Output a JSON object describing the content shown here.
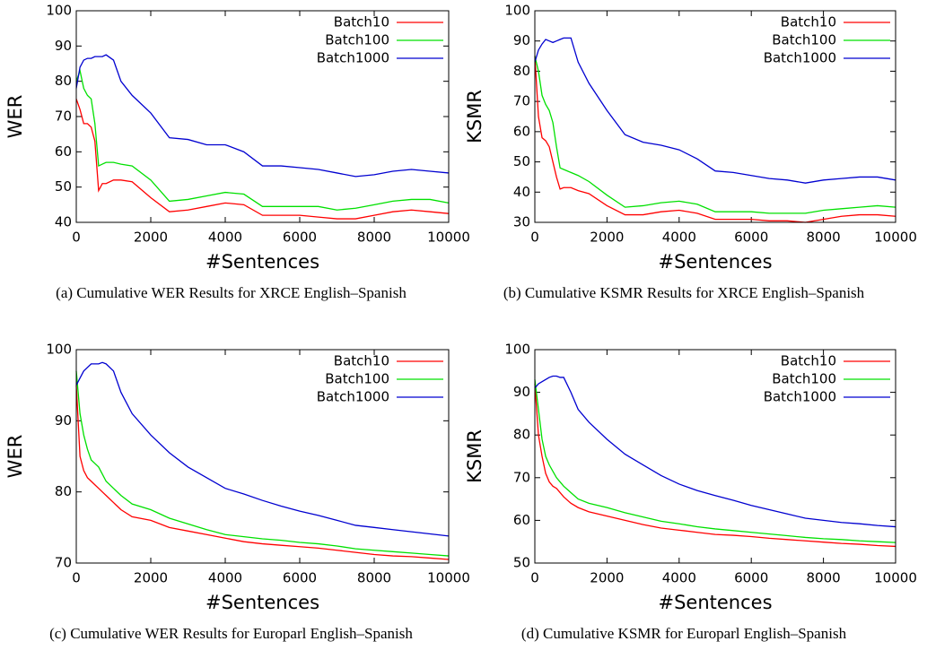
{
  "chart_data": [
    {
      "type": "line",
      "caption": "(a) Cumulative WER Results for XRCE English–Spanish",
      "x_label": "#Sentences",
      "y_label": "WER",
      "x": [
        0,
        100,
        200,
        300,
        400,
        500,
        600,
        700,
        800,
        1000,
        1200,
        1500,
        2000,
        2500,
        3000,
        3500,
        4000,
        4500,
        5000,
        5500,
        6000,
        6500,
        7000,
        7500,
        8000,
        8500,
        9000,
        9500,
        10000
      ],
      "xlim": [
        0,
        10000
      ],
      "xticks": [
        0,
        2000,
        4000,
        6000,
        8000,
        10000
      ],
      "ylim": [
        40,
        100
      ],
      "yticks": [
        40,
        50,
        60,
        70,
        80,
        90,
        100
      ],
      "legend": "top-right",
      "series": [
        {
          "name": "Batch10",
          "color": "#ff0000",
          "values": [
            75,
            72,
            68,
            68,
            67,
            63,
            49,
            51,
            51,
            52,
            52,
            51.5,
            47,
            43,
            43.5,
            44.5,
            45.5,
            45,
            42,
            42,
            42,
            41.5,
            41,
            41,
            42,
            43,
            43.5,
            43,
            42.5
          ]
        },
        {
          "name": "Batch100",
          "color": "#00e000",
          "values": [
            80,
            83,
            78,
            76,
            75,
            68,
            56,
            56.5,
            57,
            57,
            56.5,
            56,
            52,
            46,
            46.5,
            47.5,
            48.5,
            48,
            44.5,
            44.5,
            44.5,
            44.5,
            43.5,
            44,
            45,
            46,
            46.5,
            46.5,
            45.5
          ]
        },
        {
          "name": "Batch1000",
          "color": "#0000d0",
          "values": [
            78,
            84,
            86,
            86.5,
            86.5,
            87,
            87,
            87,
            87.5,
            86,
            80,
            76,
            71,
            64,
            63.5,
            62,
            62,
            60,
            56,
            56,
            55.5,
            55,
            54,
            53,
            53.5,
            54.5,
            55,
            54.5,
            54
          ]
        }
      ]
    },
    {
      "type": "line",
      "caption": "(b) Cumulative KSMR Results for XRCE English–Spanish",
      "x_label": "#Sentences",
      "y_label": "KSMR",
      "x": [
        0,
        100,
        200,
        300,
        400,
        500,
        600,
        700,
        800,
        1000,
        1200,
        1500,
        2000,
        2500,
        3000,
        3500,
        4000,
        4500,
        5000,
        5500,
        6000,
        6500,
        7000,
        7500,
        8000,
        8500,
        9000,
        9500,
        10000
      ],
      "xlim": [
        0,
        10000
      ],
      "xticks": [
        0,
        2000,
        4000,
        6000,
        8000,
        10000
      ],
      "ylim": [
        30,
        100
      ],
      "yticks": [
        30,
        40,
        50,
        60,
        70,
        80,
        90,
        100
      ],
      "legend": "top-right",
      "series": [
        {
          "name": "Batch10",
          "color": "#ff0000",
          "values": [
            85,
            65,
            58,
            57,
            55,
            50,
            45,
            41,
            41.5,
            41.5,
            40.5,
            39.5,
            35.5,
            32.5,
            32.5,
            33.5,
            34,
            33,
            31,
            31,
            31,
            30.5,
            30.5,
            30,
            31,
            32,
            32.5,
            32.5,
            32
          ]
        },
        {
          "name": "Batch100",
          "color": "#00e000",
          "values": [
            85,
            80,
            72,
            69,
            67,
            63,
            55,
            48,
            47.5,
            46.5,
            45.5,
            43.5,
            39,
            35,
            35.5,
            36.5,
            37,
            36,
            33.5,
            33.5,
            33.5,
            33,
            33,
            33,
            34,
            34.5,
            35,
            35.5,
            35
          ]
        },
        {
          "name": "Batch1000",
          "color": "#0000d0",
          "values": [
            83,
            87,
            89,
            90.5,
            90,
            89.5,
            90,
            90.5,
            91,
            91,
            83,
            76,
            67,
            59,
            56.5,
            55.5,
            54,
            51,
            47,
            46.5,
            45.5,
            44.5,
            44,
            43,
            44,
            44.5,
            45,
            45,
            44
          ]
        }
      ]
    },
    {
      "type": "line",
      "caption": "(c) Cumulative WER Results for Europarl English–Spanish",
      "x_label": "#Sentences",
      "y_label": "WER",
      "x": [
        0,
        100,
        200,
        300,
        400,
        500,
        600,
        700,
        800,
        1000,
        1200,
        1500,
        2000,
        2500,
        3000,
        3500,
        4000,
        4500,
        5000,
        5500,
        6000,
        6500,
        7000,
        7500,
        8000,
        8500,
        9000,
        9500,
        10000
      ],
      "xlim": [
        0,
        10000
      ],
      "xticks": [
        0,
        2000,
        4000,
        6000,
        8000,
        10000
      ],
      "ylim": [
        70,
        100
      ],
      "yticks": [
        70,
        80,
        90,
        100
      ],
      "legend": "top-right",
      "series": [
        {
          "name": "Batch10",
          "color": "#ff0000",
          "values": [
            95,
            85,
            83,
            82,
            81.5,
            81,
            80.5,
            80,
            79.5,
            78.5,
            77.5,
            76.5,
            76,
            75,
            74.5,
            74,
            73.5,
            73,
            72.7,
            72.5,
            72.3,
            72.1,
            71.8,
            71.5,
            71.2,
            71,
            70.9,
            70.7,
            70.5
          ]
        },
        {
          "name": "Batch100",
          "color": "#00e000",
          "values": [
            97,
            91,
            88,
            86,
            84.5,
            84,
            83.5,
            82.5,
            81.5,
            80.5,
            79.5,
            78.3,
            77.5,
            76.3,
            75.5,
            74.7,
            74,
            73.7,
            73.4,
            73.2,
            72.9,
            72.7,
            72.4,
            72,
            71.8,
            71.6,
            71.4,
            71.2,
            71
          ]
        },
        {
          "name": "Batch1000",
          "color": "#0000d0",
          "values": [
            95,
            96,
            97,
            97.5,
            98,
            98,
            98,
            98.2,
            98,
            97,
            94,
            91,
            88,
            85.5,
            83.5,
            82,
            80.5,
            79.7,
            78.8,
            78,
            77.3,
            76.7,
            76,
            75.3,
            75,
            74.7,
            74.4,
            74.1,
            73.8
          ]
        }
      ]
    },
    {
      "type": "line",
      "caption": "(d) Cumulative KSMR for Europarl English–Spanish",
      "x_label": "#Sentences",
      "y_label": "KSMR",
      "x": [
        0,
        100,
        200,
        300,
        400,
        500,
        600,
        700,
        800,
        1000,
        1200,
        1500,
        2000,
        2500,
        3000,
        3500,
        4000,
        4500,
        5000,
        5500,
        6000,
        6500,
        7000,
        7500,
        8000,
        8500,
        9000,
        9500,
        10000
      ],
      "xlim": [
        0,
        10000
      ],
      "xticks": [
        0,
        2000,
        4000,
        6000,
        8000,
        10000
      ],
      "ylim": [
        50,
        100
      ],
      "yticks": [
        50,
        60,
        70,
        80,
        90,
        100
      ],
      "legend": "top-right",
      "series": [
        {
          "name": "Batch10",
          "color": "#ff0000",
          "values": [
            92,
            80,
            75,
            71,
            69,
            68,
            67.5,
            66.5,
            65.5,
            64,
            63,
            62,
            61,
            60,
            59,
            58.2,
            57.7,
            57.2,
            56.7,
            56.5,
            56.2,
            55.8,
            55.5,
            55.2,
            54.9,
            54.6,
            54.4,
            54.1,
            53.9
          ]
        },
        {
          "name": "Batch100",
          "color": "#00e000",
          "values": [
            93,
            86,
            79,
            75,
            73,
            71.5,
            70,
            69,
            68,
            66.5,
            65,
            64,
            63,
            61.8,
            60.8,
            59.8,
            59.2,
            58.5,
            58,
            57.6,
            57.2,
            56.8,
            56.4,
            56,
            55.7,
            55.5,
            55.2,
            55,
            54.8
          ]
        },
        {
          "name": "Batch1000",
          "color": "#0000d0",
          "values": [
            91,
            92,
            92.5,
            93,
            93.5,
            93.8,
            93.8,
            93.5,
            93.5,
            90,
            86,
            83,
            79,
            75.5,
            73,
            70.5,
            68.5,
            67,
            65.8,
            64.7,
            63.5,
            62.5,
            61.5,
            60.5,
            60,
            59.5,
            59.2,
            58.8,
            58.5
          ]
        }
      ]
    }
  ]
}
